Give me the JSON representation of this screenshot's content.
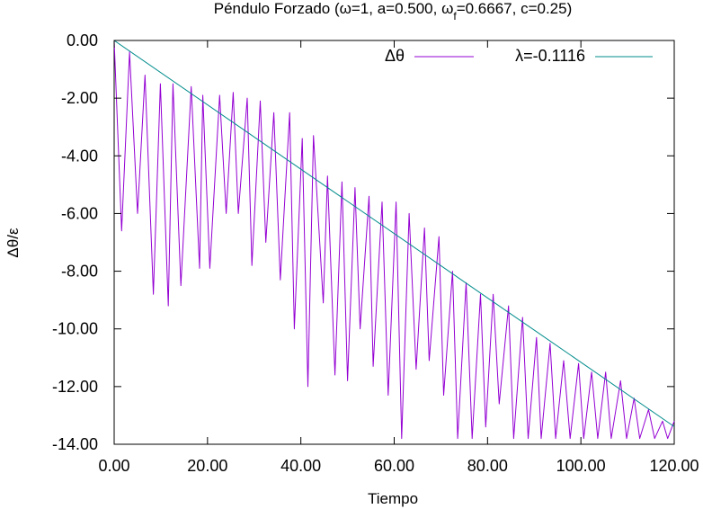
{
  "chart_data": {
    "type": "line",
    "title": "Péndulo Forzado (ω=1, a=0.500, ω",
    "title_sub": "f",
    "title_tail": "=0.6667, c=0.25)",
    "xlabel": "Tiempo",
    "ylabel": "Δθ/ε",
    "xlim": [
      0,
      120
    ],
    "ylim": [
      -14,
      0
    ],
    "xticks": [
      "0.00",
      "20.00",
      "40.00",
      "60.00",
      "80.00",
      "100.00",
      "120.00"
    ],
    "xtick_values": [
      0,
      20,
      40,
      60,
      80,
      100,
      120
    ],
    "yticks": [
      "0.00",
      "-2.00",
      "-4.00",
      "-6.00",
      "-8.00",
      "-10.00",
      "-12.00",
      "-14.00"
    ],
    "ytick_values": [
      0,
      -2,
      -4,
      -6,
      -8,
      -10,
      -12,
      -14
    ],
    "grid": false,
    "legend_position": "top-right",
    "series": [
      {
        "name": "Δθ",
        "color": "#9400d3",
        "x": [
          0,
          1.6,
          3.3,
          5.0,
          6.6,
          8.4,
          9.9,
          11.6,
          12.6,
          14.3,
          16.5,
          18.3,
          19.0,
          20.5,
          22.6,
          24.0,
          25.5,
          26.6,
          28.5,
          29.5,
          31.3,
          32.5,
          34.2,
          35.6,
          37.6,
          38.6,
          40.3,
          41.5,
          42.7,
          44.8,
          45.7,
          47.3,
          48.8,
          50.0,
          51.6,
          52.7,
          54.6,
          55.5,
          57.4,
          58.7,
          60.4,
          61.6,
          63.2,
          64.7,
          66.5,
          67.5,
          69.6,
          70.6,
          72.5,
          73.6,
          75.4,
          76.7,
          78.5,
          79.6,
          81.2,
          82.5,
          84.5,
          85.6,
          87.5,
          88.7,
          90.5,
          91.5,
          93.4,
          94.6,
          96.3,
          97.7,
          99.5,
          100.6,
          102.3,
          103.6,
          105.3,
          106.5,
          108.5,
          109.8,
          111.4,
          112.6,
          114.5,
          115.8,
          117.5,
          118.6,
          120.0
        ],
        "y": [
          0,
          -6.6,
          -0.4,
          -6.0,
          -1.2,
          -8.8,
          -1.5,
          -9.2,
          -1.5,
          -8.5,
          -1.6,
          -7.9,
          -1.9,
          -7.9,
          -1.9,
          -6.0,
          -1.8,
          -6.0,
          -2.0,
          -7.8,
          -2.1,
          -7.0,
          -2.5,
          -8.3,
          -2.5,
          -10.0,
          -3.4,
          -12.0,
          -3.3,
          -9.1,
          -4.7,
          -11.6,
          -4.9,
          -11.8,
          -5.1,
          -10.0,
          -5.4,
          -11.3,
          -5.6,
          -12.3,
          -5.6,
          -13.8,
          -6.0,
          -11.4,
          -6.5,
          -11.1,
          -6.8,
          -12.3,
          -8.0,
          -13.8,
          -8.4,
          -13.8,
          -8.8,
          -13.4,
          -8.8,
          -12.6,
          -9.2,
          -13.8,
          -9.6,
          -13.8,
          -10.3,
          -13.8,
          -10.5,
          -13.8,
          -11.1,
          -13.8,
          -11.2,
          -13.8,
          -11.5,
          -13.8,
          -11.5,
          -13.8,
          -11.8,
          -13.8,
          -12.4,
          -13.8,
          -12.8,
          -13.8,
          -13.2,
          -13.8,
          -13.2
        ]
      },
      {
        "name": "λ=-0.1116",
        "color": "#008b8b",
        "x": [
          0,
          120
        ],
        "y": [
          0,
          -13.39
        ]
      }
    ]
  }
}
